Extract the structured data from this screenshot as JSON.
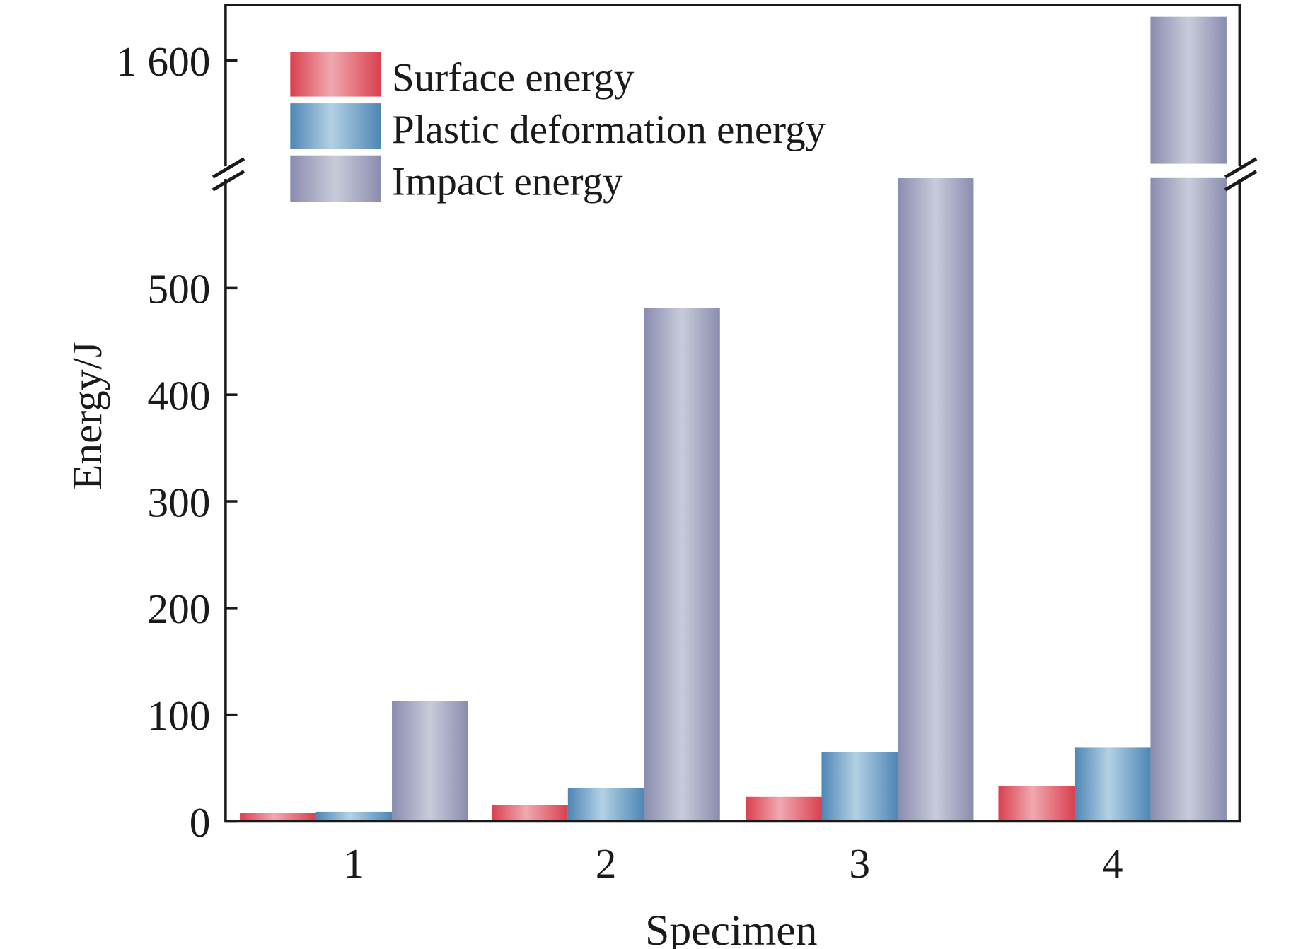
{
  "chart_data": {
    "type": "bar",
    "xlabel": "Specimen",
    "ylabel": "Energy/J",
    "categories": [
      "1",
      "2",
      "3",
      "4"
    ],
    "series": [
      {
        "name": "Surface energy",
        "values": [
          8,
          15,
          23,
          33
        ],
        "color": "#d9404f"
      },
      {
        "name": "Plastic deformation energy",
        "values": [
          9,
          31,
          65,
          69
        ],
        "color": "#4e86b5"
      },
      {
        "name": "Impact energy",
        "values": [
          113,
          481,
          603,
          1641
        ],
        "color": "#8a8cae"
      }
    ],
    "y_axis_broken": true,
    "ylim_lower": [
      0,
      603
    ],
    "ylim_upper": [
      1503,
      1653
    ],
    "yticks_lower": [
      "0",
      "100",
      "200",
      "300",
      "400",
      "500"
    ],
    "yticks_upper": [
      "1 600"
    ],
    "legend_position": "top-left",
    "grid": false
  }
}
